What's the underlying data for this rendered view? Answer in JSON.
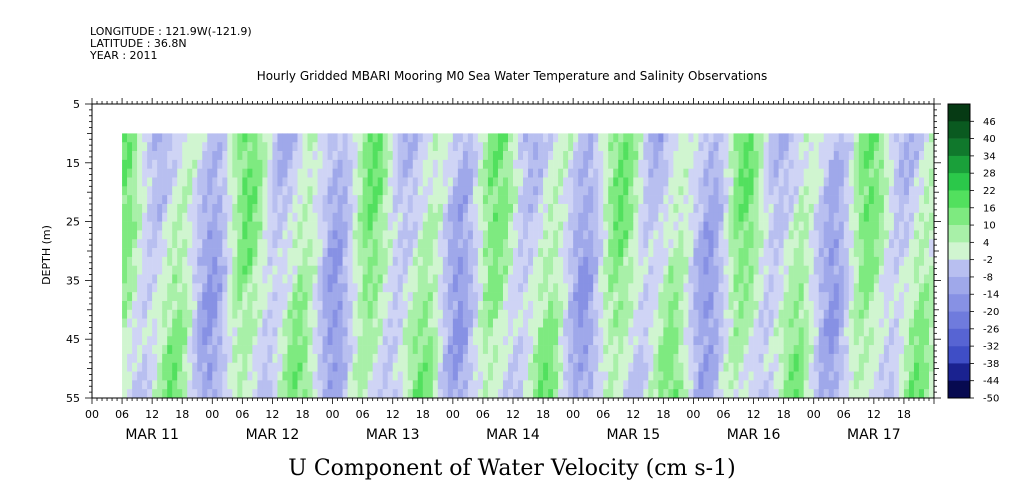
{
  "header": {
    "longitude": "LONGITUDE : 121.9W(-121.9)",
    "latitude": "LATITUDE : 36.8N",
    "year": "YEAR : 2011",
    "title": "Hourly Gridded MBARI Mooring M0 Sea Water Temperature and Salinity Observations"
  },
  "chart_data": {
    "type": "heatmap",
    "title": "Hourly Gridded MBARI Mooring M0 Sea Water Temperature and Salinity Observations",
    "xlabel": "U Component of Water Velocity (cm s-1)",
    "ylabel": "DEPTH (m)",
    "x_hour_ticks": [
      "00",
      "06",
      "12",
      "18",
      "00",
      "06",
      "12",
      "18",
      "00",
      "06",
      "12",
      "18",
      "00",
      "06",
      "12",
      "18",
      "00",
      "06",
      "12",
      "18",
      "00",
      "06",
      "12",
      "18",
      "00",
      "06",
      "12",
      "18"
    ],
    "x_date_labels": [
      "MAR 11",
      "MAR 12",
      "MAR 13",
      "MAR 14",
      "MAR 15",
      "MAR 16",
      "MAR 17"
    ],
    "y_ticks": [
      5,
      15,
      25,
      35,
      45,
      55
    ],
    "ylim": [
      55,
      5
    ],
    "data_start": "MAR 11 06",
    "data_end": "MAR 17 23",
    "depth_top": 10,
    "depth_bottom": 55,
    "colorbar": {
      "levels": [
        46,
        40,
        34,
        28,
        22,
        16,
        10,
        4,
        -2,
        -8,
        -14,
        -20,
        -26,
        -32,
        -38,
        -44,
        -50
      ],
      "range": [
        -50,
        52
      ]
    },
    "field_summary": "Alternating bands of positive (green) and negative (blue) velocity, roughly -20 to +20 cm/s, oscillating on a tidal/diurnal cycle over all depths.",
    "colors": {
      "positive_scale": [
        "#d0f5d0",
        "#a8f0a8",
        "#7eea80",
        "#52e05e",
        "#2bc84a",
        "#1aa03a",
        "#10782c",
        "#0a5a20",
        "#063a14"
      ],
      "negative_scale": [
        "#cfd4f5",
        "#b8bff0",
        "#9fa8ea",
        "#8791e4",
        "#6f7bdd",
        "#5764d3",
        "#3f4ec6",
        "#2a36b0",
        "#1a2290",
        "#0e1470",
        "#070a50"
      ]
    }
  }
}
